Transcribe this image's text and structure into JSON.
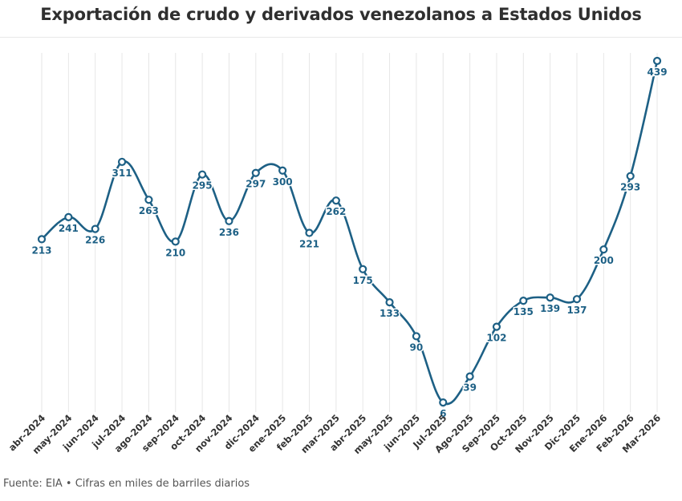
{
  "title": "Exportación de crudo y derivados venezolanos a Estados Unidos",
  "footer": "Fuente: EIA • Cifras en miles de barriles diarios",
  "colors": {
    "line": "#1d6085",
    "grid": "#e6e6e6",
    "label": "#1d6085",
    "tick": "#333333"
  },
  "chart_data": {
    "type": "line",
    "title": "Exportación de crudo y derivados venezolanos a Estados Unidos",
    "xlabel": "",
    "ylabel": "",
    "grid": "vertical",
    "legend": "none",
    "categories": [
      "abr-2024",
      "may-2024",
      "jun-2024",
      "jul-2024",
      "ago-2024",
      "sep-2024",
      "oct-2024",
      "nov-2024",
      "dic-2024",
      "ene-2025",
      "feb-2025",
      "mar-2025",
      "abr-2025",
      "may-2025",
      "jun-2025",
      "Jul-2025",
      "Ago-2025",
      "Sep-2025",
      "Oct-2025",
      "Nov-2025",
      "Dic-2025",
      "Ene-2026",
      "Feb-2026",
      "Mar-2026"
    ],
    "values": [
      213,
      241,
      226,
      311,
      263,
      210,
      295,
      236,
      297,
      300,
      221,
      262,
      175,
      133,
      90,
      6,
      39,
      102,
      135,
      139,
      137,
      200,
      293,
      439
    ],
    "ylim": [
      0,
      439
    ]
  }
}
